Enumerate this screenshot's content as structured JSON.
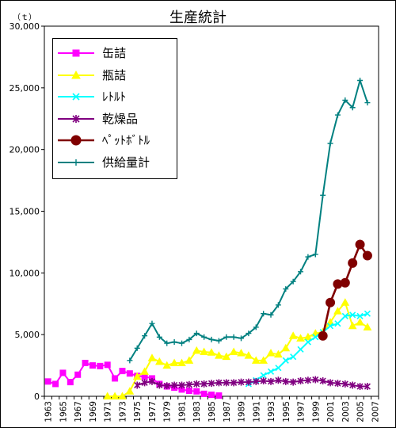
{
  "chart_data": {
    "type": "line",
    "title": "生産統計",
    "unit_label": "（ｔ）",
    "xlabel": "",
    "ylabel": "",
    "x_range": [
      1963,
      2007
    ],
    "ylim": [
      0,
      30000
    ],
    "y_ticks": [
      0,
      5000,
      10000,
      15000,
      20000,
      25000,
      30000
    ],
    "y_tick_labels": [
      "0",
      "5,000",
      "10,000",
      "15,000",
      "20,000",
      "25,000",
      "30,000"
    ],
    "x_ticks": [
      1963,
      1965,
      1967,
      1969,
      1971,
      1973,
      1975,
      1977,
      1979,
      1981,
      1983,
      1985,
      1987,
      1989,
      1991,
      1993,
      1995,
      1997,
      1999,
      2001,
      2003,
      2005,
      2007
    ],
    "x_tick_labels": [
      "1963",
      "1965",
      "1967",
      "1969",
      "1971",
      "1973",
      "1975",
      "1977",
      "1979",
      "1981",
      "1983",
      "1985",
      "1987",
      "1989",
      "1991",
      "1993",
      "1995",
      "1997",
      "1999",
      "2001",
      "2003",
      "2005",
      "2007"
    ],
    "grid": false,
    "legend_position": "top-left",
    "series": [
      {
        "name": "缶詰",
        "color": "#ff00ff",
        "marker": "square",
        "points": [
          [
            1963,
            1200
          ],
          [
            1964,
            1000
          ],
          [
            1965,
            1900
          ],
          [
            1966,
            1150
          ],
          [
            1967,
            1750
          ],
          [
            1968,
            2700
          ],
          [
            1969,
            2500
          ],
          [
            1970,
            2450
          ],
          [
            1971,
            2550
          ],
          [
            1972,
            1450
          ],
          [
            1973,
            2050
          ],
          [
            1974,
            1850
          ],
          [
            1975,
            1650
          ],
          [
            1976,
            1600
          ],
          [
            1977,
            1450
          ],
          [
            1978,
            1000
          ],
          [
            1979,
            800
          ],
          [
            1980,
            700
          ],
          [
            1981,
            550
          ],
          [
            1982,
            450
          ],
          [
            1983,
            400
          ],
          [
            1984,
            200
          ],
          [
            1985,
            120
          ],
          [
            1986,
            60
          ]
        ]
      },
      {
        "name": "瓶詰",
        "color": "#ffff00",
        "marker": "triangle",
        "points": [
          [
            1971,
            0
          ],
          [
            1972,
            0
          ],
          [
            1973,
            0
          ],
          [
            1974,
            400
          ],
          [
            1975,
            1600
          ],
          [
            1976,
            2000
          ],
          [
            1977,
            3100
          ],
          [
            1978,
            2800
          ],
          [
            1979,
            2500
          ],
          [
            1980,
            2700
          ],
          [
            1981,
            2700
          ],
          [
            1982,
            2900
          ],
          [
            1983,
            3700
          ],
          [
            1984,
            3600
          ],
          [
            1985,
            3550
          ],
          [
            1986,
            3300
          ],
          [
            1987,
            3200
          ],
          [
            1988,
            3600
          ],
          [
            1989,
            3500
          ],
          [
            1990,
            3300
          ],
          [
            1991,
            2900
          ],
          [
            1992,
            2900
          ],
          [
            1993,
            3500
          ],
          [
            1994,
            3400
          ],
          [
            1995,
            3900
          ],
          [
            1996,
            4900
          ],
          [
            1997,
            4700
          ],
          [
            1998,
            4800
          ],
          [
            1999,
            5100
          ],
          [
            2000,
            5200
          ],
          [
            2001,
            6000
          ],
          [
            2002,
            6900
          ],
          [
            2003,
            7600
          ],
          [
            2004,
            5700
          ],
          [
            2005,
            6000
          ],
          [
            2006,
            5600
          ]
        ]
      },
      {
        "name": "ﾚﾄﾙﾄ",
        "color": "#00ffff",
        "marker": "x",
        "points": [
          [
            1990,
            1000
          ],
          [
            1991,
            1300
          ],
          [
            1992,
            1700
          ],
          [
            1993,
            2000
          ],
          [
            1994,
            2300
          ],
          [
            1995,
            2900
          ],
          [
            1996,
            3200
          ],
          [
            1997,
            3800
          ],
          [
            1998,
            4400
          ],
          [
            1999,
            4800
          ],
          [
            2000,
            5200
          ],
          [
            2001,
            5700
          ],
          [
            2002,
            5900
          ],
          [
            2003,
            6500
          ],
          [
            2004,
            6600
          ],
          [
            2005,
            6500
          ],
          [
            2006,
            6700
          ]
        ]
      },
      {
        "name": "乾燥品",
        "color": "#800080",
        "marker": "asterisk",
        "points": [
          [
            1975,
            900
          ],
          [
            1976,
            1100
          ],
          [
            1977,
            1200
          ],
          [
            1978,
            900
          ],
          [
            1979,
            850
          ],
          [
            1980,
            900
          ],
          [
            1981,
            900
          ],
          [
            1982,
            950
          ],
          [
            1983,
            1000
          ],
          [
            1984,
            1000
          ],
          [
            1985,
            1050
          ],
          [
            1986,
            1100
          ],
          [
            1987,
            1100
          ],
          [
            1988,
            1100
          ],
          [
            1989,
            1150
          ],
          [
            1990,
            1150
          ],
          [
            1991,
            1200
          ],
          [
            1992,
            1250
          ],
          [
            1993,
            1200
          ],
          [
            1994,
            1300
          ],
          [
            1995,
            1200
          ],
          [
            1996,
            1150
          ],
          [
            1997,
            1250
          ],
          [
            1998,
            1300
          ],
          [
            1999,
            1350
          ],
          [
            2000,
            1250
          ],
          [
            2001,
            1100
          ],
          [
            2002,
            1050
          ],
          [
            2003,
            1000
          ],
          [
            2004,
            900
          ],
          [
            2005,
            800
          ],
          [
            2006,
            800
          ]
        ]
      },
      {
        "name": "ﾍﾟｯﾄﾎﾞﾄﾙ",
        "color": "#800000",
        "marker": "circle",
        "points": [
          [
            2000,
            4900
          ],
          [
            2001,
            7600
          ],
          [
            2002,
            9100
          ],
          [
            2003,
            9200
          ],
          [
            2004,
            10800
          ],
          [
            2005,
            12300
          ],
          [
            2006,
            11400
          ]
        ]
      },
      {
        "name": "供給量計",
        "color": "#008080",
        "marker": "plus",
        "points": [
          [
            1974,
            2900
          ],
          [
            1975,
            3900
          ],
          [
            1976,
            4900
          ],
          [
            1977,
            5900
          ],
          [
            1978,
            4800
          ],
          [
            1979,
            4300
          ],
          [
            1980,
            4400
          ],
          [
            1981,
            4300
          ],
          [
            1982,
            4600
          ],
          [
            1983,
            5100
          ],
          [
            1984,
            4800
          ],
          [
            1985,
            4600
          ],
          [
            1986,
            4500
          ],
          [
            1987,
            4800
          ],
          [
            1988,
            4800
          ],
          [
            1989,
            4700
          ],
          [
            1990,
            5100
          ],
          [
            1991,
            5600
          ],
          [
            1992,
            6700
          ],
          [
            1993,
            6600
          ],
          [
            1994,
            7400
          ],
          [
            1995,
            8700
          ],
          [
            1996,
            9300
          ],
          [
            1997,
            10100
          ],
          [
            1998,
            11300
          ],
          [
            1999,
            11500
          ],
          [
            2000,
            16300
          ],
          [
            2001,
            20500
          ],
          [
            2002,
            22800
          ],
          [
            2003,
            24000
          ],
          [
            2004,
            23400
          ],
          [
            2005,
            25600
          ],
          [
            2006,
            23800
          ]
        ]
      }
    ]
  }
}
